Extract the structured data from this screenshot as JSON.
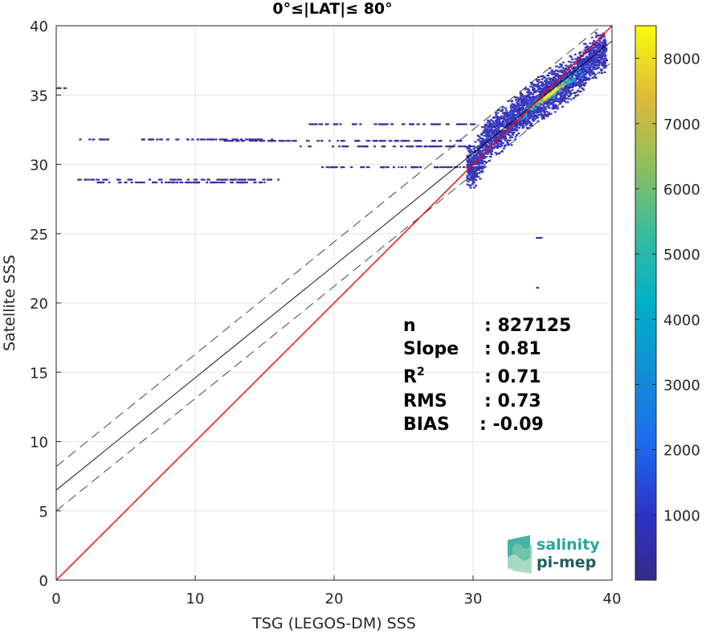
{
  "chart_data": {
    "type": "heatmap",
    "title": "0°≤|LAT|≤ 80°",
    "xlabel": "TSG (LEGOS-DM) SSS",
    "ylabel": "Satellite SSS",
    "xlim": [
      0,
      40
    ],
    "ylim": [
      0,
      40
    ],
    "xticks": [
      "0",
      "10",
      "20",
      "30",
      "40"
    ],
    "yticks": [
      "0",
      "5",
      "10",
      "15",
      "20",
      "25",
      "30",
      "35",
      "40"
    ],
    "grid": true,
    "colorbar": {
      "range": [
        0,
        8500
      ],
      "ticks": [
        "1000",
        "2000",
        "3000",
        "4000",
        "5000",
        "6000",
        "7000",
        "8000"
      ]
    },
    "lines": {
      "identity": {
        "slope": 1,
        "intercept": 0,
        "color": "#ff0000"
      },
      "fit": {
        "slope": 0.81,
        "intercept": 6.5,
        "color": "#000000"
      },
      "fit_upper": {
        "slope": 0.81,
        "intercept": 8.2,
        "dash": true
      },
      "fit_lower": {
        "slope": 0.81,
        "intercept": 5.0,
        "dash": true
      }
    },
    "density_core": {
      "center": [
        35.5,
        35.1
      ],
      "peak": 8500
    },
    "density_band": [
      [
        30,
        29.8
      ],
      [
        31,
        31.8
      ],
      [
        32,
        32.6
      ],
      [
        33,
        33.4
      ],
      [
        34,
        34.2
      ],
      [
        35,
        34.9
      ],
      [
        36,
        35.5
      ],
      [
        37,
        36.2
      ],
      [
        38,
        37.1
      ],
      [
        39,
        38.1
      ]
    ],
    "outlier_rows": [
      {
        "y": 35.5,
        "x_from": 0,
        "x_to": 0.7
      },
      {
        "y": 31.8,
        "x_from": 1.5,
        "x_to": 15.5
      },
      {
        "y": 31.7,
        "x_from": 12,
        "x_to": 29
      },
      {
        "y": 31.3,
        "x_from": 17.5,
        "x_to": 31
      },
      {
        "y": 28.9,
        "x_from": 1.5,
        "x_to": 16
      },
      {
        "y": 28.7,
        "x_from": 1.7,
        "x_to": 15
      },
      {
        "y": 32.9,
        "x_from": 18,
        "x_to": 30
      },
      {
        "y": 29.8,
        "x_from": 19,
        "x_to": 31
      },
      {
        "y": 24.7,
        "x_from": 34.5,
        "x_to": 34.9
      },
      {
        "y": 21.1,
        "x_from": 34.5,
        "x_to": 34.8
      }
    ]
  },
  "stats": {
    "rows": [
      {
        "label": "n",
        "value": ": 827125"
      },
      {
        "label": "Slope",
        "value": ": 0.81"
      },
      {
        "label": "R2",
        "value": ": 0.71"
      },
      {
        "label": "RMS",
        "value": ": 0.73"
      },
      {
        "label": "BIAS",
        "value": ": -0.09"
      }
    ]
  },
  "logo": {
    "line1": "salinity",
    "line2": "pi-mep",
    "color1": "#23a79a",
    "color2": "#1d5e63"
  }
}
